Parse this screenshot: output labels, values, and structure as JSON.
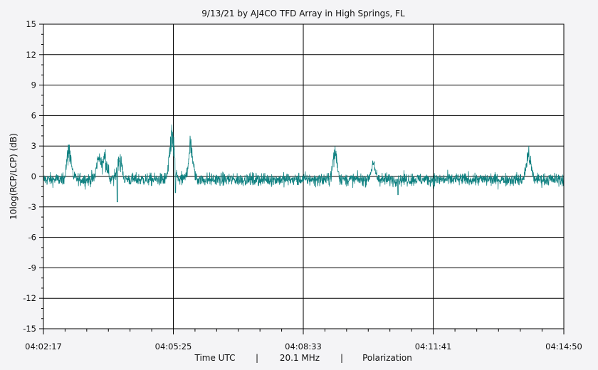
{
  "chart_data": {
    "type": "line",
    "title": "9/13/21  by  AJ4CO TFD Array  in  High Springs, FL",
    "ylabel": "10log(RCP/LCP) (dB)",
    "xlabel_parts": [
      "Time UTC",
      "|",
      "20.1 MHz",
      "|",
      "Polarization"
    ],
    "ylim": [
      -15,
      15
    ],
    "yticks": [
      15,
      12,
      9,
      6,
      3,
      0,
      -3,
      -6,
      -9,
      -12,
      -15
    ],
    "xlim": [
      "04:02:17",
      "04:14:50"
    ],
    "xticks": [
      "04:02:17",
      "04:05:25",
      "04:08:33",
      "04:11:41",
      "04:14:50"
    ],
    "grid": true,
    "series_color": "#0e8080",
    "series": [
      {
        "baseline_db": -0.3,
        "noise_db": 0.6,
        "peaks": [
          {
            "time": "04:02:54",
            "db": 3.3
          },
          {
            "time": "04:03:37",
            "db": 2.3
          },
          {
            "time": "04:03:46",
            "db": 2.4
          },
          {
            "time": "04:04:07",
            "db": 2.5
          },
          {
            "time": "04:05:23",
            "db": 5.2
          },
          {
            "time": "04:05:50",
            "db": 3.8
          },
          {
            "time": "04:09:19",
            "db": 3.0
          },
          {
            "time": "04:10:14",
            "db": 1.5
          },
          {
            "time": "04:13:59",
            "db": 3.0
          }
        ],
        "dips": [
          {
            "time": "04:04:04",
            "db": -2.5
          },
          {
            "time": "04:05:28",
            "db": -1.6
          },
          {
            "time": "04:10:50",
            "db": -1.8
          }
        ]
      }
    ]
  }
}
